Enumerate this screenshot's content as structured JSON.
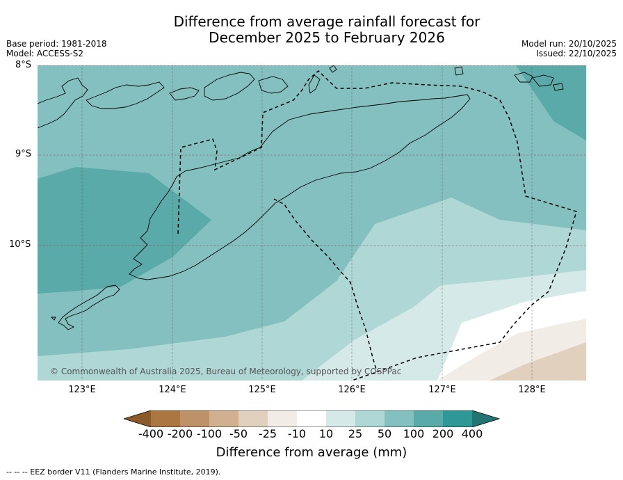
{
  "header": {
    "title_line1": "Difference from average rainfall forecast for",
    "title_line2": "December 2025 to February 2026",
    "base_period": "Base period: 1981-2018",
    "model": "Model: ACCESS-S2",
    "model_run": "Model run: 20/10/2025",
    "issued": "Issued: 22/10/2025"
  },
  "map": {
    "lat_labels": [
      "8°S",
      "9°S",
      "10°S"
    ],
    "lon_labels": [
      "123°E",
      "124°E",
      "125°E",
      "126°E",
      "127°E",
      "128°E"
    ],
    "copyright": "© Commonwealth of Australia 2025, Bureau of Meteorology, supported by COSPPac",
    "colors": {
      "c200": "#5aaaaa",
      "c100": "#83c0bf",
      "c50": "#aed7d5",
      "c25": "#d5eae8",
      "c10": "#ffffff",
      "cm25": "#f1ede6",
      "cm50": "#e2d0bf"
    }
  },
  "colorbar": {
    "tick_labels": [
      "-400",
      "-200",
      "-100",
      "-50",
      "-25",
      "-10",
      "10",
      "25",
      "50",
      "100",
      "200",
      "400"
    ],
    "colors": [
      "#8b5a2b",
      "#ac7642",
      "#be9268",
      "#d0b08f",
      "#e2d0bf",
      "#f1ede6",
      "#ffffff",
      "#d5eae8",
      "#aed7d5",
      "#83c0bf",
      "#5aaaaa",
      "#2e9896",
      "#237473"
    ],
    "title": "Difference from average (mm)"
  },
  "footnote": "--  --  -- EEZ border V11 (Flanders Marine Institute, 2019)."
}
